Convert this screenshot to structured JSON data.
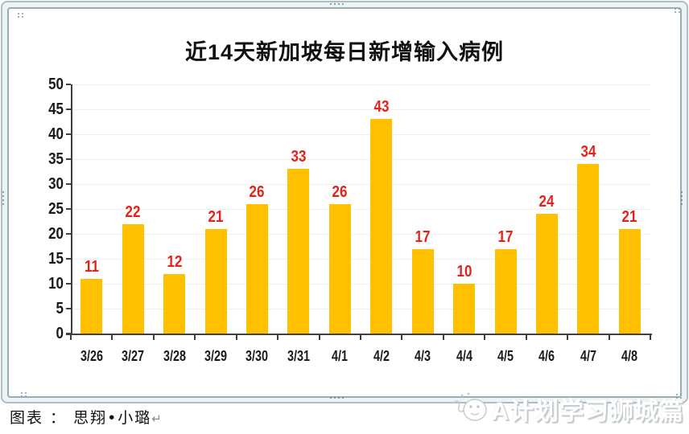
{
  "chart_data": {
    "type": "bar",
    "title": "近14天新加坡每日新增输入病例",
    "categories": [
      "3/26",
      "3/27",
      "3/28",
      "3/29",
      "3/30",
      "3/31",
      "4/1",
      "4/2",
      "4/3",
      "4/4",
      "4/5",
      "4/6",
      "4/7",
      "4/8"
    ],
    "values": [
      11,
      22,
      12,
      21,
      26,
      33,
      26,
      43,
      17,
      10,
      17,
      24,
      34,
      21
    ],
    "xlabel": "",
    "ylabel": "",
    "ylim": [
      0,
      50
    ],
    "ytick_step": 5,
    "ytick_labels": [
      "0",
      "5",
      "10",
      "15",
      "20",
      "25",
      "30",
      "35",
      "40",
      "45",
      "50"
    ],
    "grid": true,
    "legend": false,
    "bar_color": "#FFC000",
    "value_label_color": "#E2231A",
    "axis_color": "#3f3f3f",
    "gridline_color": "#efefef",
    "tick_label_color": "#1a1a1a"
  },
  "caption": {
    "label": "图表 ： 思翔•小璐",
    "return_mark": "↵"
  },
  "watermark": {
    "text": "A计划学习狮城篇",
    "logo": "doodle-face-logo"
  }
}
